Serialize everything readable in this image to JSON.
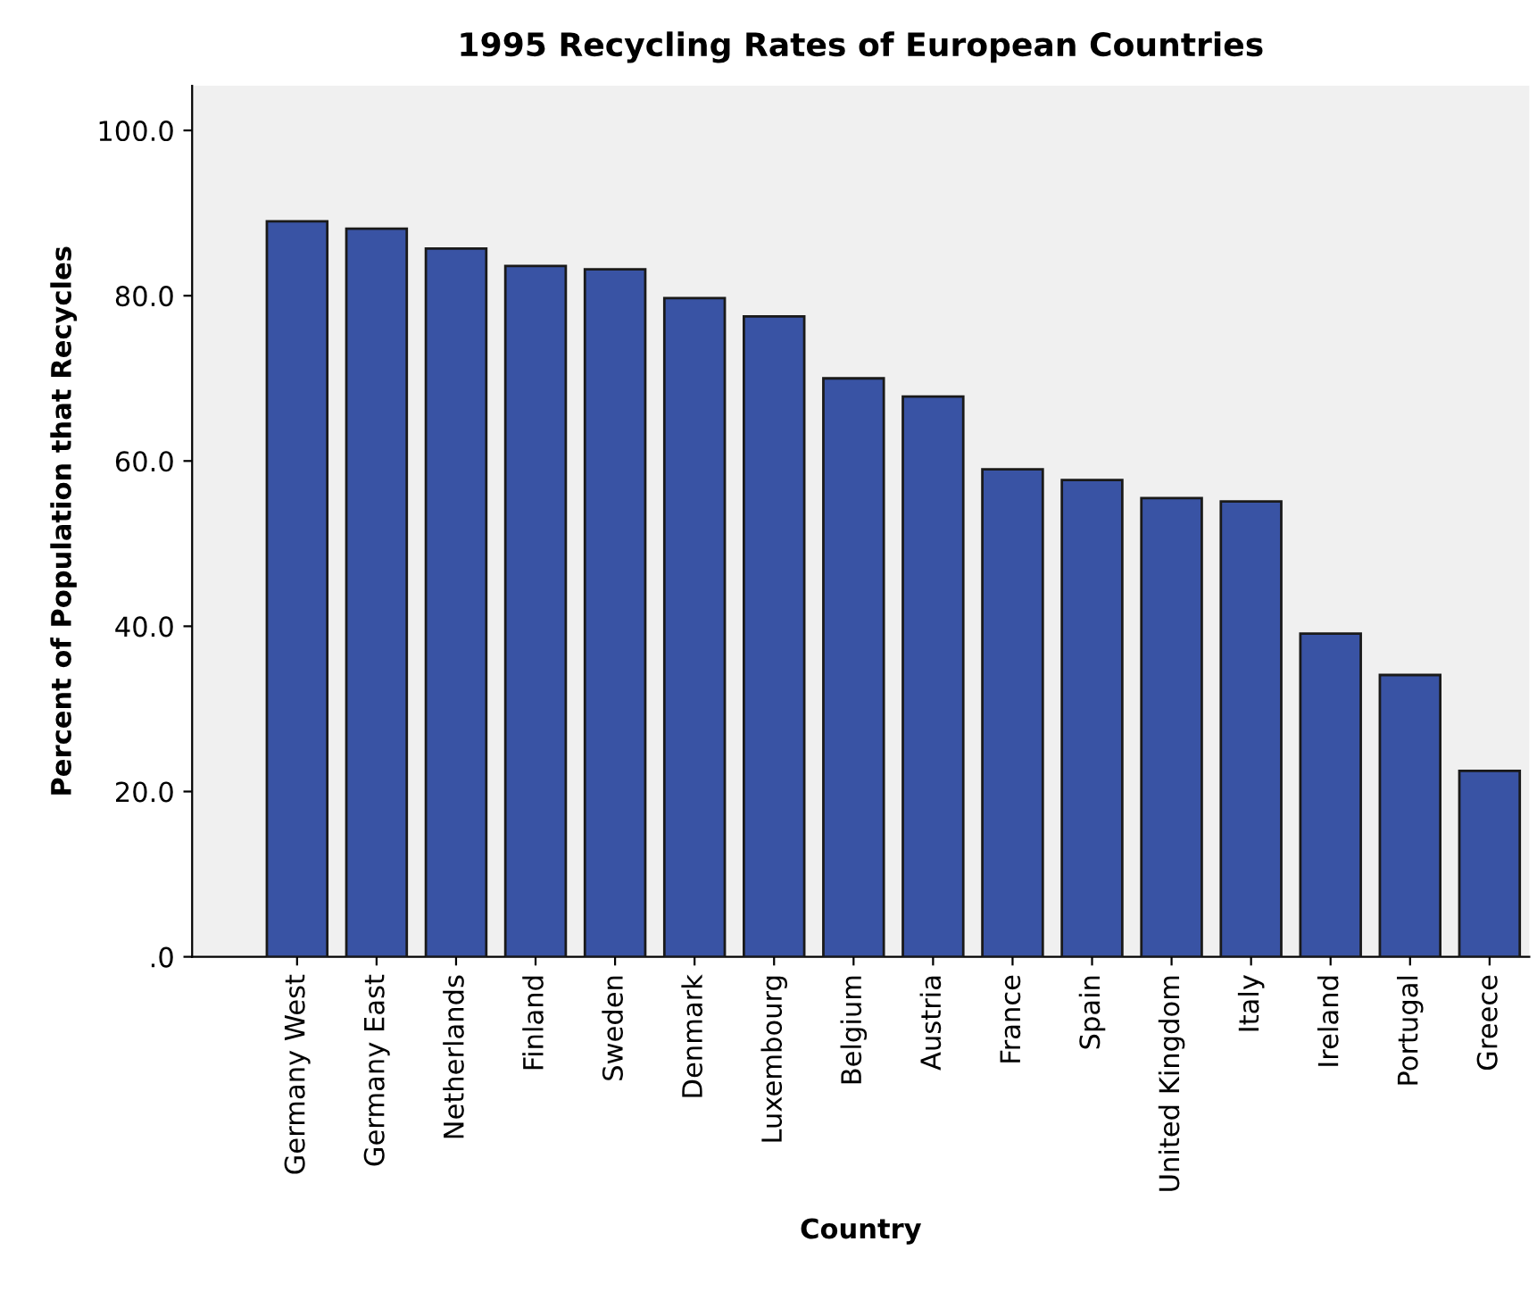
{
  "chart_data": {
    "type": "bar",
    "title": "1995 Recycling Rates of European Countries",
    "xlabel": "Country",
    "ylabel": "Percent of Population that Recycles",
    "categories": [
      "Germany West",
      "Germany East",
      "Netherlands",
      "Finland",
      "Sweden",
      "Denmark",
      "Luxembourg",
      "Belgium",
      "Austria",
      "France",
      "Spain",
      "United Kingdom",
      "Italy",
      "Ireland",
      "Portugal",
      "Greece"
    ],
    "values": [
      89.0,
      88.1,
      85.7,
      83.6,
      83.2,
      79.7,
      77.5,
      70.0,
      67.8,
      59.0,
      57.7,
      55.5,
      55.1,
      39.1,
      34.1,
      22.5
    ],
    "color": "#3953a4",
    "ylim": [
      0,
      105.4
    ],
    "yticks": [
      {
        "value": 0,
        "label": ".0"
      },
      {
        "value": 20,
        "label": "20.0"
      },
      {
        "value": 40,
        "label": "40.0"
      },
      {
        "value": 60,
        "label": "60.0"
      },
      {
        "value": 80,
        "label": "80.0"
      },
      {
        "value": 100,
        "label": "100.0"
      }
    ],
    "grid": false
  }
}
